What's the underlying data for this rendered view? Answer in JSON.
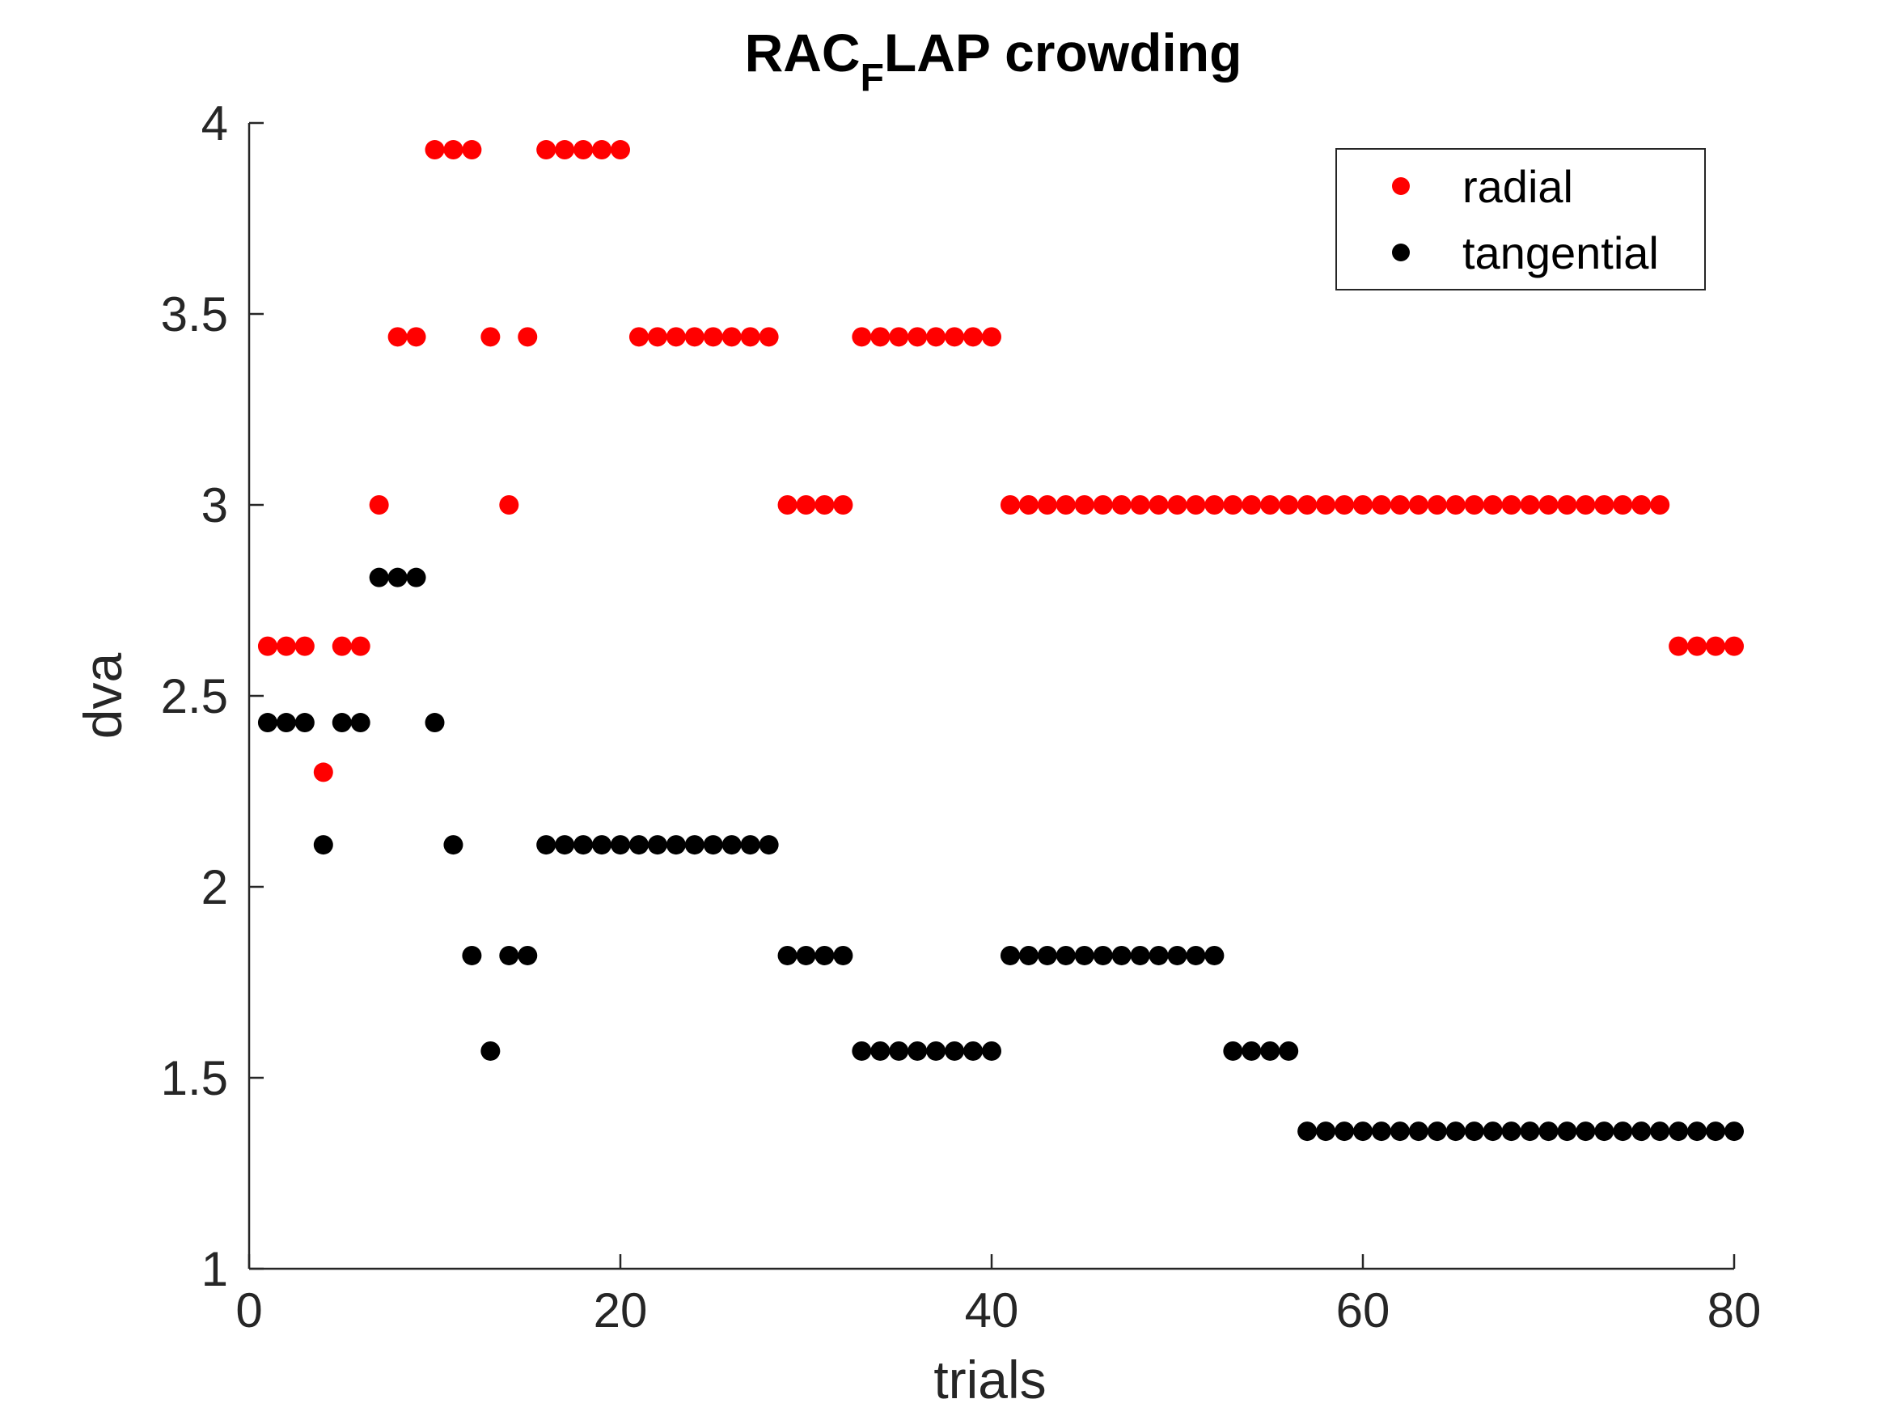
{
  "chart_data": {
    "type": "scatter",
    "title_prefix": "RAC",
    "title_subscript": "F",
    "title_suffix": "LAP crowding",
    "xlabel": "trials",
    "ylabel": "dva",
    "xlim": [
      0,
      80
    ],
    "ylim": [
      1,
      4
    ],
    "xticks": [
      "0",
      "20",
      "40",
      "60",
      "80"
    ],
    "yticks": [
      "1",
      "1.5",
      "2",
      "2.5",
      "3",
      "3.5",
      "4"
    ],
    "grid": false,
    "legend_position": "top-right",
    "series": [
      {
        "name": "radial",
        "color": "#ff0000",
        "x": [
          1,
          2,
          3,
          4,
          5,
          6,
          7,
          8,
          9,
          10,
          11,
          12,
          13,
          14,
          15,
          16,
          17,
          18,
          19,
          20,
          21,
          22,
          23,
          24,
          25,
          26,
          27,
          28,
          29,
          30,
          31,
          32,
          33,
          34,
          35,
          36,
          37,
          38,
          39,
          40,
          41,
          42,
          43,
          44,
          45,
          46,
          47,
          48,
          49,
          50,
          51,
          52,
          53,
          54,
          55,
          56,
          57,
          58,
          59,
          60,
          61,
          62,
          63,
          64,
          65,
          66,
          67,
          68,
          69,
          70,
          71,
          72,
          73,
          74,
          75,
          76,
          77,
          78,
          79,
          80
        ],
        "y": [
          2.63,
          2.63,
          2.63,
          2.3,
          2.63,
          2.63,
          3.0,
          3.44,
          3.44,
          3.93,
          3.93,
          3.93,
          3.44,
          3.0,
          3.44,
          3.93,
          3.93,
          3.93,
          3.93,
          3.93,
          3.44,
          3.44,
          3.44,
          3.44,
          3.44,
          3.44,
          3.44,
          3.44,
          3.0,
          3.0,
          3.0,
          3.0,
          3.44,
          3.44,
          3.44,
          3.44,
          3.44,
          3.44,
          3.44,
          3.44,
          3.0,
          3.0,
          3.0,
          3.0,
          3.0,
          3.0,
          3.0,
          3.0,
          3.0,
          3.0,
          3.0,
          3.0,
          3.0,
          3.0,
          3.0,
          3.0,
          3.0,
          3.0,
          3.0,
          3.0,
          3.0,
          3.0,
          3.0,
          3.0,
          3.0,
          3.0,
          3.0,
          3.0,
          3.0,
          3.0,
          3.0,
          3.0,
          3.0,
          3.0,
          3.0,
          3.0,
          2.63,
          2.63,
          2.63,
          2.63
        ]
      },
      {
        "name": "tangential",
        "color": "#000000",
        "x": [
          1,
          2,
          3,
          4,
          5,
          6,
          7,
          8,
          9,
          10,
          11,
          12,
          13,
          14,
          15,
          16,
          17,
          18,
          19,
          20,
          21,
          22,
          23,
          24,
          25,
          26,
          27,
          28,
          29,
          30,
          31,
          32,
          33,
          34,
          35,
          36,
          37,
          38,
          39,
          40,
          41,
          42,
          43,
          44,
          45,
          46,
          47,
          48,
          49,
          50,
          51,
          52,
          53,
          54,
          55,
          56,
          57,
          58,
          59,
          60,
          61,
          62,
          63,
          64,
          65,
          66,
          67,
          68,
          69,
          70,
          71,
          72,
          73,
          74,
          75,
          76,
          77,
          78,
          79,
          80
        ],
        "y": [
          2.43,
          2.43,
          2.43,
          2.11,
          2.43,
          2.43,
          2.81,
          2.81,
          2.81,
          2.43,
          2.11,
          1.82,
          1.57,
          1.82,
          1.82,
          2.11,
          2.11,
          2.11,
          2.11,
          2.11,
          2.11,
          2.11,
          2.11,
          2.11,
          2.11,
          2.11,
          2.11,
          2.11,
          1.82,
          1.82,
          1.82,
          1.82,
          1.57,
          1.57,
          1.57,
          1.57,
          1.57,
          1.57,
          1.57,
          1.57,
          1.82,
          1.82,
          1.82,
          1.82,
          1.82,
          1.82,
          1.82,
          1.82,
          1.82,
          1.82,
          1.82,
          1.82,
          1.57,
          1.57,
          1.57,
          1.57,
          1.36,
          1.36,
          1.36,
          1.36,
          1.36,
          1.36,
          1.36,
          1.36,
          1.36,
          1.36,
          1.36,
          1.36,
          1.36,
          1.36,
          1.36,
          1.36,
          1.36,
          1.36,
          1.36,
          1.36,
          1.36,
          1.36,
          1.36,
          1.36
        ]
      }
    ]
  }
}
